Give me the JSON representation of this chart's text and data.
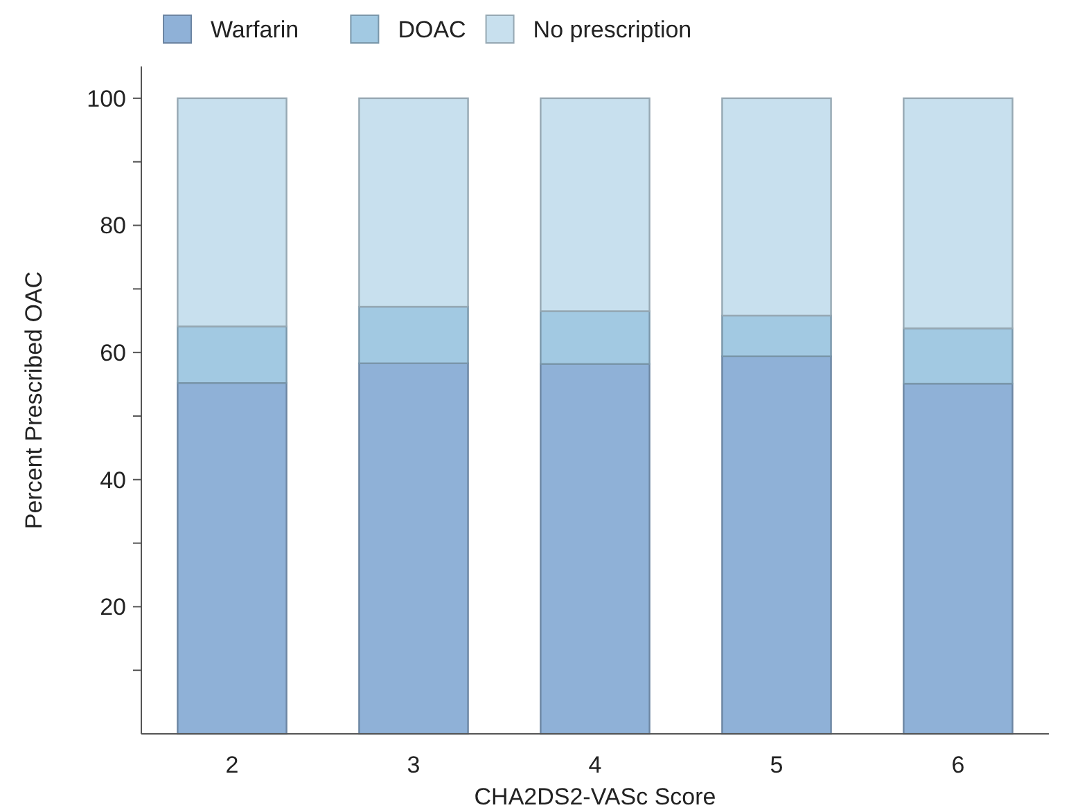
{
  "chart_data": {
    "type": "bar",
    "stacked": true,
    "xlabel": "CHA2DS2-VASc Score",
    "ylabel": "Percent Prescribed OAC",
    "categories": [
      "2",
      "3",
      "4",
      "5",
      "6"
    ],
    "series": [
      {
        "name": "Warfarin",
        "color": "#8fb1d7",
        "values": [
          55.2,
          58.3,
          58.2,
          59.4,
          55.1
        ]
      },
      {
        "name": "DOAC",
        "color": "#a2c9e2",
        "values": [
          8.9,
          8.9,
          8.3,
          6.4,
          8.7
        ]
      },
      {
        "name": "No prescription",
        "color": "#c8e0ee",
        "values": [
          35.9,
          32.8,
          33.5,
          34.2,
          36.2
        ]
      }
    ],
    "ylim": [
      0,
      105
    ],
    "yticks": [
      {
        "value": 10,
        "label": null
      },
      20,
      {
        "value": 30,
        "label": null
      },
      40,
      {
        "value": 50,
        "label": null
      },
      60,
      {
        "value": 70,
        "label": null
      },
      80,
      {
        "value": 90,
        "label": null
      },
      100
    ],
    "grid": false,
    "legend": "top"
  }
}
